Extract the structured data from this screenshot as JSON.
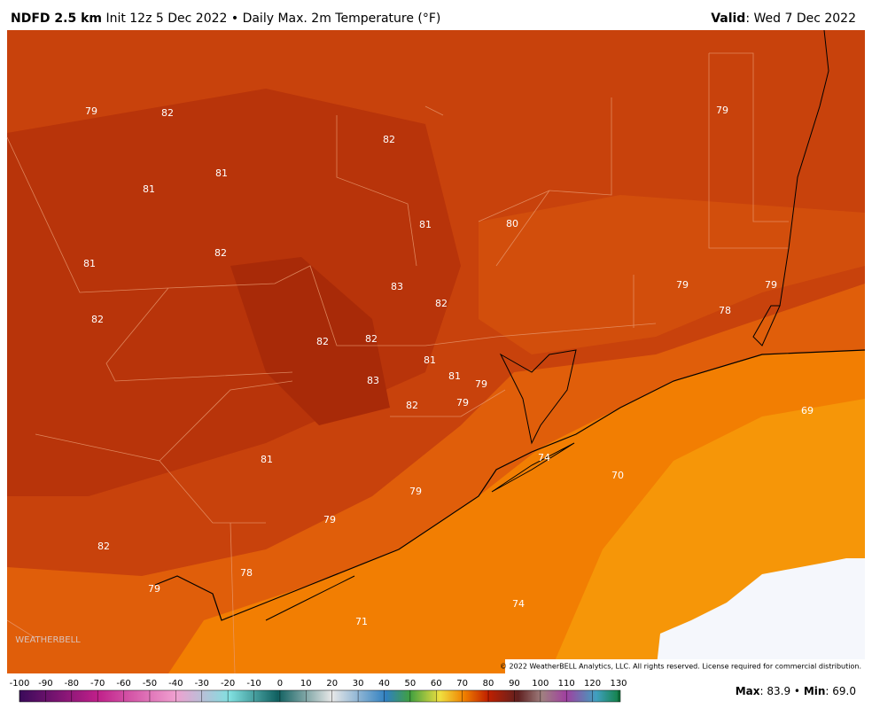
{
  "header": {
    "title": "NDFD 2.5 km",
    "subtitle": "Init 12z 5 Dec 2022 • Daily Max. 2m Temperature (°F)",
    "valid_label": "Valid",
    "valid_text": ": Wed 7 Dec 2022"
  },
  "map": {
    "labels": [
      79,
      82,
      82,
      79,
      81,
      81,
      81,
      80,
      82,
      81,
      83,
      82,
      79,
      79,
      78,
      82,
      82,
      82,
      81,
      81,
      79,
      83,
      82,
      79,
      69,
      81,
      74,
      70,
      79,
      79,
      82,
      78,
      79,
      74,
      71
    ],
    "copyright": "© 2022 WeatherBELL Analytics, LLC. All rights reserved. License required for commercial distribution.",
    "logo": "WEATHERBELL"
  },
  "colorbar": {
    "ticks": [
      -100,
      -90,
      -80,
      -70,
      -60,
      -50,
      -40,
      -30,
      -20,
      -10,
      0,
      10,
      20,
      30,
      40,
      50,
      60,
      70,
      80,
      90,
      100,
      110,
      120,
      130
    ]
  },
  "stats": {
    "max_label": "Max",
    "max_text": ": 83.9 •",
    "min_label": "Min",
    "min_text": ": 69.0"
  }
}
